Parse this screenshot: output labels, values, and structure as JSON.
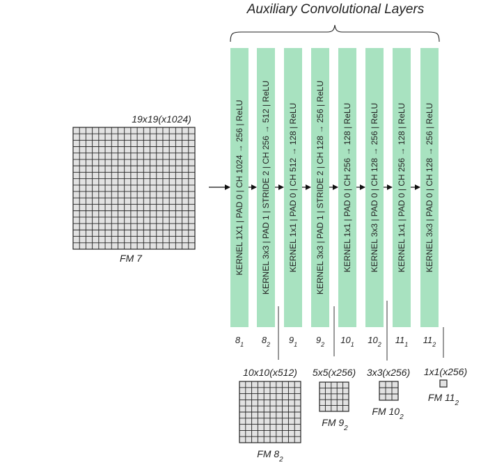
{
  "title": "Auxiliary Convolutional Layers",
  "colors": {
    "layer_fill": "#a8e2c0",
    "grid_fill": "#e2e2e2",
    "grid_line": "#222222",
    "text": "#222222"
  },
  "input_fm": {
    "dims": "19x19(x1024)",
    "label": "FM 7",
    "cells": 19
  },
  "layers": [
    {
      "spec": "KERNEL 1X1 | PAD 0 | CH 1024 → 256 | ReLU",
      "label_main": "8",
      "label_sub": "1"
    },
    {
      "spec": "KERNEL 3x3 | PAD 1 | STRIDE 2 | CH 256 → 512 | ReLU",
      "label_main": "8",
      "label_sub": "2"
    },
    {
      "spec": "KERNEL 1x1 | PAD 0 | CH 512 → 128 | ReLU",
      "label_main": "9",
      "label_sub": "1"
    },
    {
      "spec": "KERNEL 3x3 | PAD 1 | STRIDE 2 | CH 128 → 256 | ReLU",
      "label_main": "9",
      "label_sub": "2"
    },
    {
      "spec": "KERNEL 1x1 | PAD 0 | CH 256 → 128 | ReLU",
      "label_main": "10",
      "label_sub": "1"
    },
    {
      "spec": "KERNEL 3x3 | PAD 0 | CH 128 → 256 | ReLU",
      "label_main": "10",
      "label_sub": "2"
    },
    {
      "spec": "KERNEL 1x1 | PAD 0 | CH 256 → 128 | ReLU",
      "label_main": "11",
      "label_sub": "1"
    },
    {
      "spec": "KERNEL 3x3 | PAD 0 | CH 128 → 256 | ReLU",
      "label_main": "11",
      "label_sub": "2"
    }
  ],
  "output_fms": [
    {
      "dims": "10x10(x512)",
      "label_main": "FM 8",
      "label_sub": "2",
      "cells": 10
    },
    {
      "dims": "5x5(x256)",
      "label_main": "FM 9",
      "label_sub": "2",
      "cells": 5
    },
    {
      "dims": "3x3(x256)",
      "label_main": "FM 10",
      "label_sub": "2",
      "cells": 3
    },
    {
      "dims": "1x1(x256)",
      "label_main": "FM 11",
      "label_sub": "2",
      "cells": 1
    }
  ]
}
